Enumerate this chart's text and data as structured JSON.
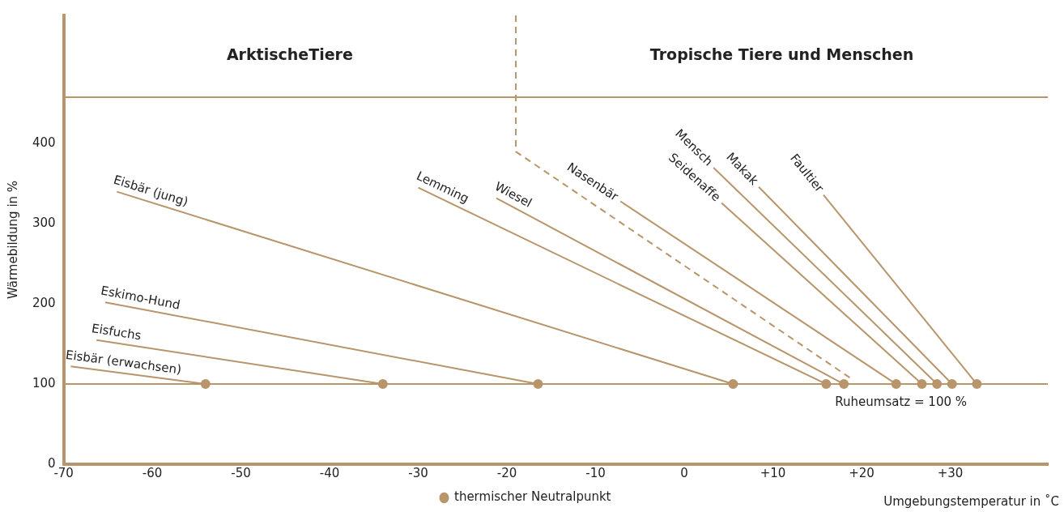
{
  "chart_data": {
    "type": "line",
    "xlabel": "Umgebungstemperatur in ˚C",
    "ylabel": "Wärmebildung in %",
    "xlim": [
      -70,
      41
    ],
    "xticks": [
      -70,
      -60,
      -50,
      -40,
      -30,
      -20,
      -10,
      0,
      {
        "value": 10,
        "label": "+10"
      },
      {
        "value": 20,
        "label": "+20"
      },
      {
        "value": 30,
        "label": "+30"
      }
    ],
    "ylim": [
      0,
      560
    ],
    "yticks": [
      0,
      100,
      200,
      300,
      400
    ],
    "grid": false,
    "legend": "bottom",
    "marker": "none",
    "series": [
      {
        "name": "Eisbär (erwachsen)",
        "color": "#b8956a",
        "x": [
          -69.2,
          -54
        ],
        "values": [
          122,
          100
        ]
      },
      {
        "name": "Eisfuchs",
        "color": "#b8956a",
        "x": [
          -66.3,
          -34
        ],
        "values": [
          155,
          100
        ]
      },
      {
        "name": "Eskimo-Hund",
        "color": "#b8956a",
        "x": [
          -65.3,
          -16.5
        ],
        "values": [
          202,
          100
        ]
      },
      {
        "name": "Eisbär (jung)",
        "color": "#b8956a",
        "x": [
          -64,
          5.5
        ],
        "values": [
          340,
          100
        ]
      },
      {
        "name": "Lemming",
        "color": "#b8956a",
        "x": [
          -30,
          16
        ],
        "values": [
          345,
          100
        ]
      },
      {
        "name": "Wiesel",
        "color": "#b8956a",
        "x": [
          -21.2,
          18
        ],
        "values": [
          332,
          100
        ]
      },
      {
        "name": "Nasenbär",
        "color": "#b8956a",
        "x": [
          -7.2,
          23.9
        ],
        "values": [
          328,
          100
        ]
      },
      {
        "name": "Seidenaffe",
        "color": "#b8956a",
        "x": [
          4.2,
          26.8
        ],
        "values": [
          326,
          100
        ]
      },
      {
        "name": "Mensch",
        "color": "#b8956a",
        "x": [
          3.3,
          28.5
        ],
        "values": [
          370,
          100
        ]
      },
      {
        "name": "Makak",
        "color": "#b8956a",
        "x": [
          8.4,
          30.2
        ],
        "values": [
          346,
          100
        ]
      },
      {
        "name": "Faultier",
        "color": "#b8956a",
        "x": [
          15.7,
          33
        ],
        "values": [
          336,
          100
        ]
      },
      {
        "color": "#b8956a",
        "line_style": "dashed",
        "x": [
          -19,
          -19,
          18.8
        ],
        "values": [
          560,
          390,
          107
        ]
      },
      {
        "name": "thermischer Neutralpunkt",
        "type": "scatter",
        "marker": "circle",
        "color": "#b8956a",
        "x": [
          -54,
          -34,
          -16.5,
          5.5,
          16,
          18,
          23.9,
          26.8,
          28.5,
          30.2,
          33
        ],
        "values": [
          100,
          100,
          100,
          100,
          100,
          100,
          100,
          100,
          100,
          100,
          100
        ]
      }
    ],
    "ref_lines": [
      {
        "axis": "y",
        "value": 100,
        "label": "Ruheumsatz = 100 %",
        "color": "#b8956a"
      },
      {
        "axis": "y",
        "value": 458,
        "color": "#b8956a"
      }
    ],
    "annotations": [
      "ArktischeTiere",
      "Tropische Tiere und Menschen"
    ]
  }
}
